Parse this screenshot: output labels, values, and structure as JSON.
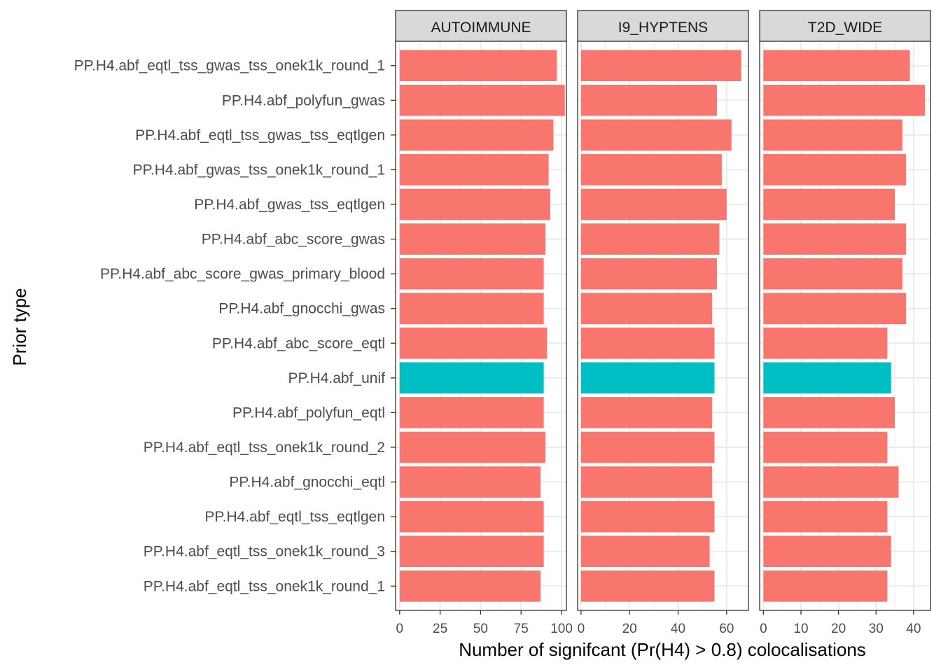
{
  "chart_data": {
    "type": "bar",
    "orientation": "horizontal",
    "xlabel": "Number of signifcant (Pr(H4) > 0.8) colocalisations",
    "ylabel": "Prior type",
    "categories": [
      "PP.H4.abf_eqtl_tss_gwas_tss_onek1k_round_1",
      "PP.H4.abf_polyfun_gwas",
      "PP.H4.abf_eqtl_tss_gwas_tss_eqtlgen",
      "PP.H4.abf_gwas_tss_onek1k_round_1",
      "PP.H4.abf_gwas_tss_eqtlgen",
      "PP.H4.abf_abc_score_gwas",
      "PP.H4.abf_abc_score_gwas_primary_blood",
      "PP.H4.abf_gnocchi_gwas",
      "PP.H4.abf_abc_score_eqtl",
      "PP.H4.abf_unif",
      "PP.H4.abf_polyfun_eqtl",
      "PP.H4.abf_eqtl_tss_onek1k_round_2",
      "PP.H4.abf_gnocchi_eqtl",
      "PP.H4.abf_eqtl_tss_eqtlgen",
      "PP.H4.abf_eqtl_tss_onek1k_round_3",
      "PP.H4.abf_eqtl_tss_onek1k_round_1"
    ],
    "highlight_category": "PP.H4.abf_unif",
    "colors": {
      "default": "#F8766D",
      "highlight": "#00BFC4"
    },
    "grid": true,
    "legend": "none",
    "facets": [
      {
        "name": "AUTOIMMUNE",
        "xlim": [
          -2.5,
          103
        ],
        "ticks": [
          0,
          25,
          50,
          75,
          100
        ],
        "values": [
          97,
          102,
          95,
          92,
          93,
          90,
          89,
          89,
          91,
          89,
          89,
          90,
          87,
          89,
          89,
          87
        ]
      },
      {
        "name": "I9_HYPTENS",
        "xlim": [
          -1.4,
          69
        ],
        "ticks": [
          0,
          20,
          40,
          60
        ],
        "values": [
          66,
          56,
          62,
          58,
          60,
          57,
          56,
          54,
          55,
          55,
          54,
          55,
          54,
          55,
          53,
          55
        ]
      },
      {
        "name": "T2D_WIDE",
        "xlim": [
          -1.0,
          44.5
        ],
        "ticks": [
          0,
          10,
          20,
          30,
          40
        ],
        "values": [
          39,
          43,
          37,
          38,
          35,
          38,
          37,
          38,
          33,
          34,
          35,
          33,
          36,
          33,
          34,
          33
        ]
      }
    ]
  }
}
